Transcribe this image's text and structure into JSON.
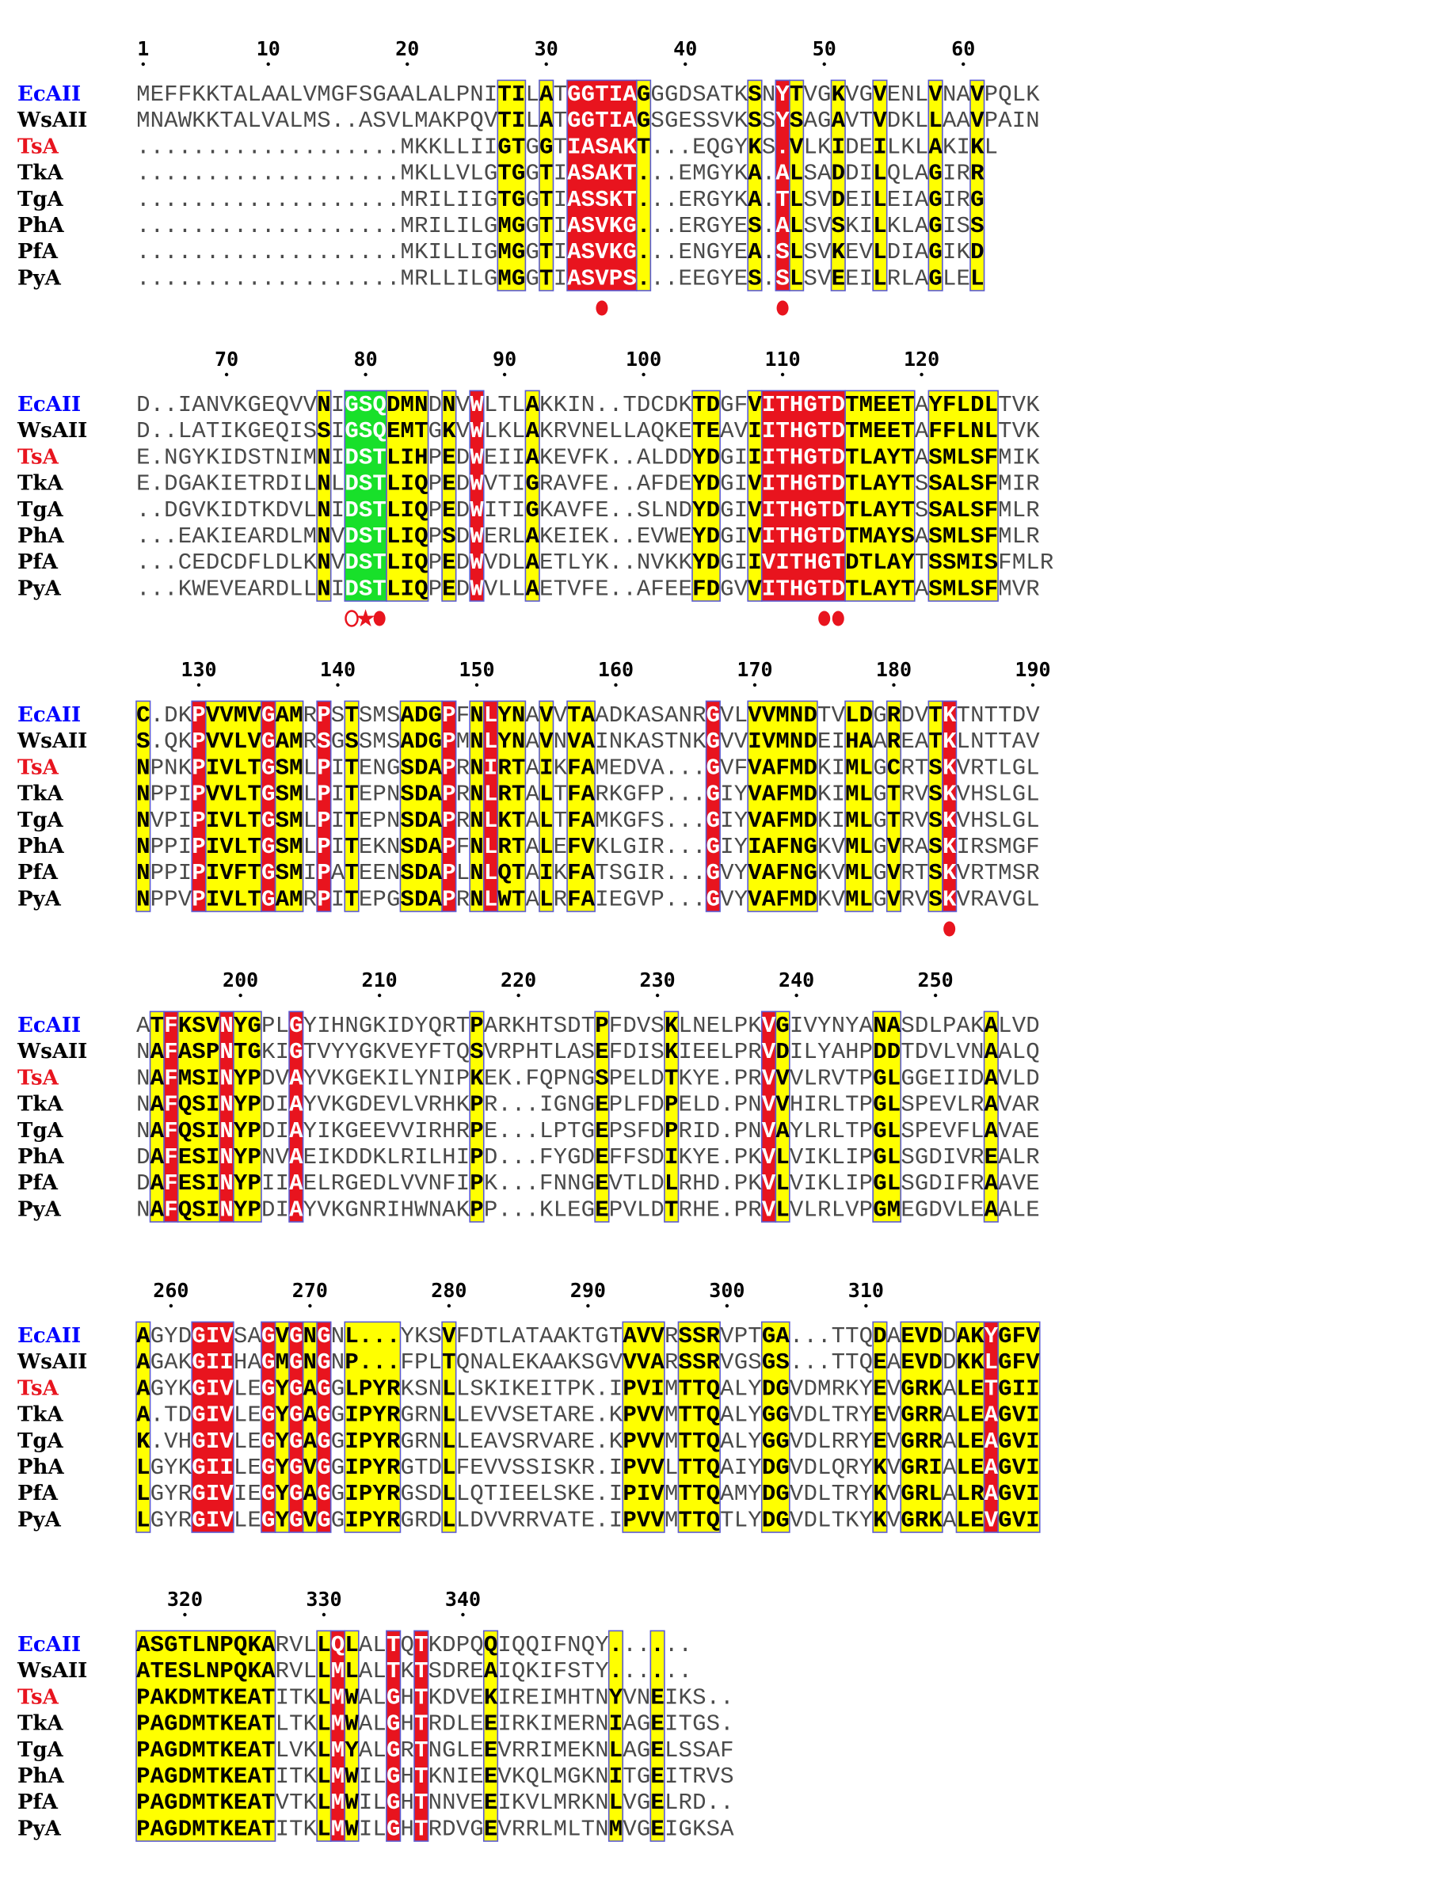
{
  "colors": {
    "strict_bg": "#e8141e",
    "similar_bg": "#ffff00",
    "green_bg": "#18e02a",
    "frame": "#5a5ad2",
    "ecoli_label": "#0000ff",
    "tsa_label": "#e8141e",
    "default_label": "#000000",
    "marker": "#e8141e"
  },
  "sequences": [
    {
      "name": "EcAII",
      "color": "#0000ff"
    },
    {
      "name": "WsAII",
      "color": "#000000"
    },
    {
      "name": "TsA",
      "color": "#e8141e"
    },
    {
      "name": "TkA",
      "color": "#000000"
    },
    {
      "name": "TgA",
      "color": "#000000"
    },
    {
      "name": "PhA",
      "color": "#000000"
    },
    {
      "name": "PfA",
      "color": "#000000"
    },
    {
      "name": "PyA",
      "color": "#000000"
    }
  ],
  "blocks": [
    {
      "rows": [
        "MEFFKKTALAALVMGFSGAALALPNITILATGGTIAGGGDSATKSNYTVGKVGVENLVNAVPQLK",
        "MNAWKKTALVALMS..ASVLMAKPQVTILATGGTIAGSGESSVKSSYSAGAVTVDKLLAAVPAIN",
        "...................MKKLLIIGTGGTIASAKT...EQGYKS.VLKIDEILKLAKIKL",
        "...................MKLLVLGTGGTIASAKT...EMGYKA.ALSADDILQLAGIRR",
        "...................MRILIIGTGGTIASSKT...ERGYKA.TLSVDEILEIAGIRG",
        "...................MRILILGMGGTIASVKG...ERGYES.ALSVSKILKLAGISS",
        "...................MKILLIGMGGTIASVKG...ENGYEA.SLSVKEVLDIAGIKD",
        "...................MRLLILGMGGTIASVPS...EEGYES.SLSVEEILRLAGLEL"
      ],
      "ticks": [
        {
          "col": 0,
          "label": "1"
        },
        {
          "col": 9,
          "label": "10"
        },
        {
          "col": 19,
          "label": "20"
        },
        {
          "col": 29,
          "label": "30"
        },
        {
          "col": 39,
          "label": "40"
        },
        {
          "col": 49,
          "label": "50"
        },
        {
          "col": 59,
          "label": "60"
        }
      ],
      "red": [
        [
          31,
          35
        ],
        [
          46,
          46
        ]
      ],
      "yellow": [
        [
          26,
          27
        ],
        [
          29,
          29
        ],
        [
          36,
          36
        ],
        [
          44,
          44
        ],
        [
          47,
          47
        ],
        [
          50,
          50
        ],
        [
          53,
          53
        ],
        [
          57,
          57
        ],
        [
          60,
          60
        ]
      ],
      "markers": [
        {
          "col": 33,
          "symbol": "●"
        },
        {
          "col": 46,
          "symbol": "●"
        }
      ]
    },
    {
      "rows": [
        "D..IANVKGEQVVNIGSQDMNDNVWLTLAKKIN..TDCDKTDGFVITHGTDTMEETAYFLDLTVK",
        "D..LATIKGEQISSIGSQEMTGKVWLKLAKRVNELLAQKETEAVIITHGTDTMEETAFFLNLTVK",
        "E.NGYKIDSTNIMNIDSTLIHPEDWEIIAKEVFK..ALDDYDGIIITHGTDTLAYTASMLSFMIK",
        "E.DGAKIETRDILNLDSTLIQPEDWVTIGRAVFE..AFDEYDGIVITHGTDTLAYTSSALSFMIR",
        "..DGVKIDTKDVLNIDSTLIQPEDWITIGKAVFE..SLNDYDGIVITHGTDTLAYTSSALSFMLR",
        "...EAKIEARDLMNVDSTLIQPSDWERLAKEIEK..EVWEYDGIVITHGTDTMAYSASMLSFMLR",
        "...CEDCDFLDLKNVDSTLIQPEDWVDLAETLYK..NVKKYDGIIVITHGTDTLAYTSSMISFMLR",
        "...KWEVEARDLLNIDSTLIQPEDWVLLAETVFE..AFEEFDGVVITHGTDTLAYTASMLSFMVR"
      ],
      "ticks": [
        {
          "col": 6,
          "label": "70"
        },
        {
          "col": 16,
          "label": "80"
        },
        {
          "col": 26,
          "label": "90"
        },
        {
          "col": 36,
          "label": "100"
        },
        {
          "col": 46,
          "label": "110"
        },
        {
          "col": 56,
          "label": "120"
        }
      ],
      "red": [
        [
          24,
          24
        ],
        [
          45,
          50
        ]
      ],
      "green": [
        [
          15,
          17
        ]
      ],
      "yellow": [
        [
          13,
          13
        ],
        [
          18,
          20
        ],
        [
          22,
          22
        ],
        [
          28,
          28
        ],
        [
          40,
          41
        ],
        [
          44,
          44
        ],
        [
          51,
          55
        ],
        [
          57,
          61
        ]
      ],
      "markers": [
        {
          "col": 15,
          "symbol": "○"
        },
        {
          "col": 16,
          "symbol": "★"
        },
        {
          "col": 17,
          "symbol": "●"
        },
        {
          "col": 49,
          "symbol": "●"
        },
        {
          "col": 50,
          "symbol": "●"
        }
      ]
    },
    {
      "rows": [
        "C.DKPVVMVGAMRPSTSMSADGPFNLYNAVVTAADKASANRGVLVVMNDTVLDGRDVTKTNTTDV",
        "S.QKPVVLVGAMRSGSSMSADGPMNLYNAVNVAINKASTNKGVVIVMNDEIHAAREATKLNTTAV",
        "NPNKPIVLTGSMLPITENGSDAPRNIRTAIKFAMEDVA...GVFVAFMDKIMLGCRTSKVRTLGL",
        "NPPIPVVLTGSMLPITEPNSDAPRNLRTALTFARKGFP...GIYVAFMDKIMLGTRVSKVHSLGL",
        "NVPIPIVLTGSMLPITEPNSDAPRNLKTALTFAMKGFS...GIYVAFMDKIMLGTRVSKVHSLGL",
        "NPPIPIVLTGSMLPITEKNSDAPFNLRTALEFVKLGIR...GIYIAFNGKVMLGVRASKIRSMGF",
        "NPPIPIVFTGSMIPATEENSDAPLNLQTAIKFATSGIR...GVYVAFNGKVMLGVRTSKVRTMSR",
        "NPPVPIVLTGAMRPITEPGSDAPRNLWTALRFAIEGVP...GVYVAFMDKVMLGVRVSKVRAVGL"
      ],
      "ticks": [
        {
          "col": 4,
          "label": "130"
        },
        {
          "col": 14,
          "label": "140"
        },
        {
          "col": 24,
          "label": "150"
        },
        {
          "col": 34,
          "label": "160"
        },
        {
          "col": 44,
          "label": "170"
        },
        {
          "col": 54,
          "label": "180"
        },
        {
          "col": 64,
          "label": "190"
        }
      ],
      "red": [
        [
          4,
          4
        ],
        [
          9,
          9
        ],
        [
          13,
          13
        ],
        [
          22,
          22
        ],
        [
          25,
          25
        ],
        [
          41,
          41
        ],
        [
          58,
          58
        ]
      ],
      "yellow": [
        [
          0,
          0
        ],
        [
          5,
          8
        ],
        [
          10,
          11
        ],
        [
          15,
          15
        ],
        [
          19,
          21
        ],
        [
          24,
          24
        ],
        [
          26,
          27
        ],
        [
          29,
          29
        ],
        [
          31,
          32
        ],
        [
          44,
          48
        ],
        [
          51,
          52
        ],
        [
          54,
          54
        ],
        [
          57,
          57
        ]
      ],
      "markers": [
        {
          "col": 58,
          "symbol": "●"
        }
      ]
    },
    {
      "rows": [
        "ATFKSVNYGPLGYIHNGKIDYQRTPARKHTSDTPFDVSKLNELPKVGIVYNYANASDLPAKALVD",
        "NAFASPNTGKIGTVYYGKVEYFTQSVRPHTLASEFDISKIEELPRVDILYAHPDDTDVLVNAALQ",
        "NAFMSINYPDVAYVKGEKILYNIPKEK.FQPNGSPELDTKYE.PRVVVLRVTPGLGGEIIDAVLD",
        "NAFQSINYPDIAYVKGDEVLVRHKPR...IGNGEPLFDPELD.PNVVHIRLTPGLSPEVLRAVAR",
        "NAFQSINYPDIAYIKGEEVVIRHRPE...LPTGEPSFDPRID.PNVAYLRLTPGLSPEVFLAVAE",
        "DAFESINYPNVAEIKDDKLRILHIPD...FYGDEFFSDIKYE.PKVLVIKLIPGLSGDIVREALR",
        "DAFESINYPIIAELRGEDLVVNFIPK...FNNGEVTLDLRHD.PKVLVIKLIPGLSGDIFRAAVE",
        "NAFQSINYPDIAYVKGNRIHWNAKPP...KLEGEPVLDTRHE.PRVLVLRLVPGMEGDVLEAALE"
      ],
      "ticks": [
        {
          "col": 7,
          "label": "200"
        },
        {
          "col": 17,
          "label": "210"
        },
        {
          "col": 27,
          "label": "220"
        },
        {
          "col": 37,
          "label": "230"
        },
        {
          "col": 47,
          "label": "240"
        },
        {
          "col": 57,
          "label": "250"
        }
      ],
      "red": [
        [
          2,
          2
        ],
        [
          6,
          6
        ],
        [
          11,
          11
        ],
        [
          45,
          45
        ]
      ],
      "yellow": [
        [
          1,
          1
        ],
        [
          3,
          5
        ],
        [
          7,
          8
        ],
        [
          24,
          24
        ],
        [
          33,
          33
        ],
        [
          38,
          38
        ],
        [
          46,
          46
        ],
        [
          53,
          54
        ],
        [
          61,
          61
        ]
      ],
      "markers": []
    },
    {
      "rows": [
        "AGYDGIVSAGVGNGNL...YKSVFDTLATAAKTGTAVVRSSRVPTGA...TTQDAEVDDAKYGFV",
        "AGAKGIIHAGMGNGNP...FPLTQNALEKAAKSGVVVARSSRVGSGS...TTQEAEVDDKKLGFV",
        "AGYKGIVLEGYGAGGLPYRKSNLLSKIKEITPK.IPVIMTTQALYDGVDMRKYEVGRKALETGII",
        "A.TDGIVLEGYGAGGIPYRGRNLLEVVSETARE.KPVVMTTQALYGGVDLTRYEVGRRALEAGVI",
        "K.VHGIVLEGYGAGGIPYRGRNLLEAVSRVARE.KPVVMTTQALYGGVDLRRYEVGRRALEAGVI",
        "LGYKGIILEGYGVGGIPYRGTDLFEVVSSISKR.IPVVLTTQAIYDGVDLQRYKVGRIALEAGVI",
        "LGYRGIVIEGYGAGGIPYRGSDLLQTIEELSKE.IPIVMTTQAMYDGVDLTRYKVGRLALRAGVI",
        "LGYRGIVLEGYGVGGIPYRGRDLLDVVRRVATE.IPVVMTTQTLYDGVDLTKYKVGRKALEVGVI"
      ],
      "ticks": [
        {
          "col": 2,
          "label": "260"
        },
        {
          "col": 12,
          "label": "270"
        },
        {
          "col": 22,
          "label": "280"
        },
        {
          "col": 32,
          "label": "290"
        },
        {
          "col": 42,
          "label": "300"
        },
        {
          "col": 52,
          "label": "310"
        }
      ],
      "red": [
        [
          4,
          6
        ],
        [
          9,
          9
        ],
        [
          11,
          11
        ],
        [
          13,
          13
        ],
        [
          61,
          61
        ]
      ],
      "yellow": [
        [
          0,
          0
        ],
        [
          10,
          10
        ],
        [
          12,
          12
        ],
        [
          15,
          18
        ],
        [
          22,
          22
        ],
        [
          35,
          37
        ],
        [
          39,
          41
        ],
        [
          45,
          46
        ],
        [
          53,
          53
        ],
        [
          55,
          57
        ],
        [
          59,
          60
        ],
        [
          62,
          64
        ]
      ],
      "markers": []
    },
    {
      "rows": [
        "ASGTLNPQKARVLLQLALTQTKDPQQIQQIFNQY......",
        "ATESLNPQKARVLLMLALTKTSDREAIQKIFSTY......",
        "PAKDMTKEATITKLMWALGHTKDVEKIREIMHTNYVNEIKS..",
        "PAGDMTKEATLTKLMWALGHTRDLEEIRKIMERNIAGEITGS.",
        "PAGDMTKEATLVKLMYALGRTNGLEEVRRIMEKNLAGELSSAF",
        "PAGDMTKEATITKLMWILGHTKNIEEVKQLMGKNITGEITRVS",
        "PAGDMTKEATVTKLMWILGHTNNVEEIKVLMRKNLVGELRD..",
        "PAGDMTKEATITKLMWILGHTRDVGEVRRLMLTNMVGEIGKSA"
      ],
      "ticks": [
        {
          "col": 3,
          "label": "320"
        },
        {
          "col": 13,
          "label": "330"
        },
        {
          "col": 23,
          "label": "340"
        }
      ],
      "red": [
        [
          14,
          14
        ],
        [
          18,
          18
        ],
        [
          20,
          20
        ]
      ],
      "yellow": [
        [
          0,
          9
        ],
        [
          13,
          13
        ],
        [
          15,
          15
        ],
        [
          25,
          25
        ],
        [
          34,
          34
        ],
        [
          37,
          37
        ]
      ],
      "markers": []
    }
  ]
}
